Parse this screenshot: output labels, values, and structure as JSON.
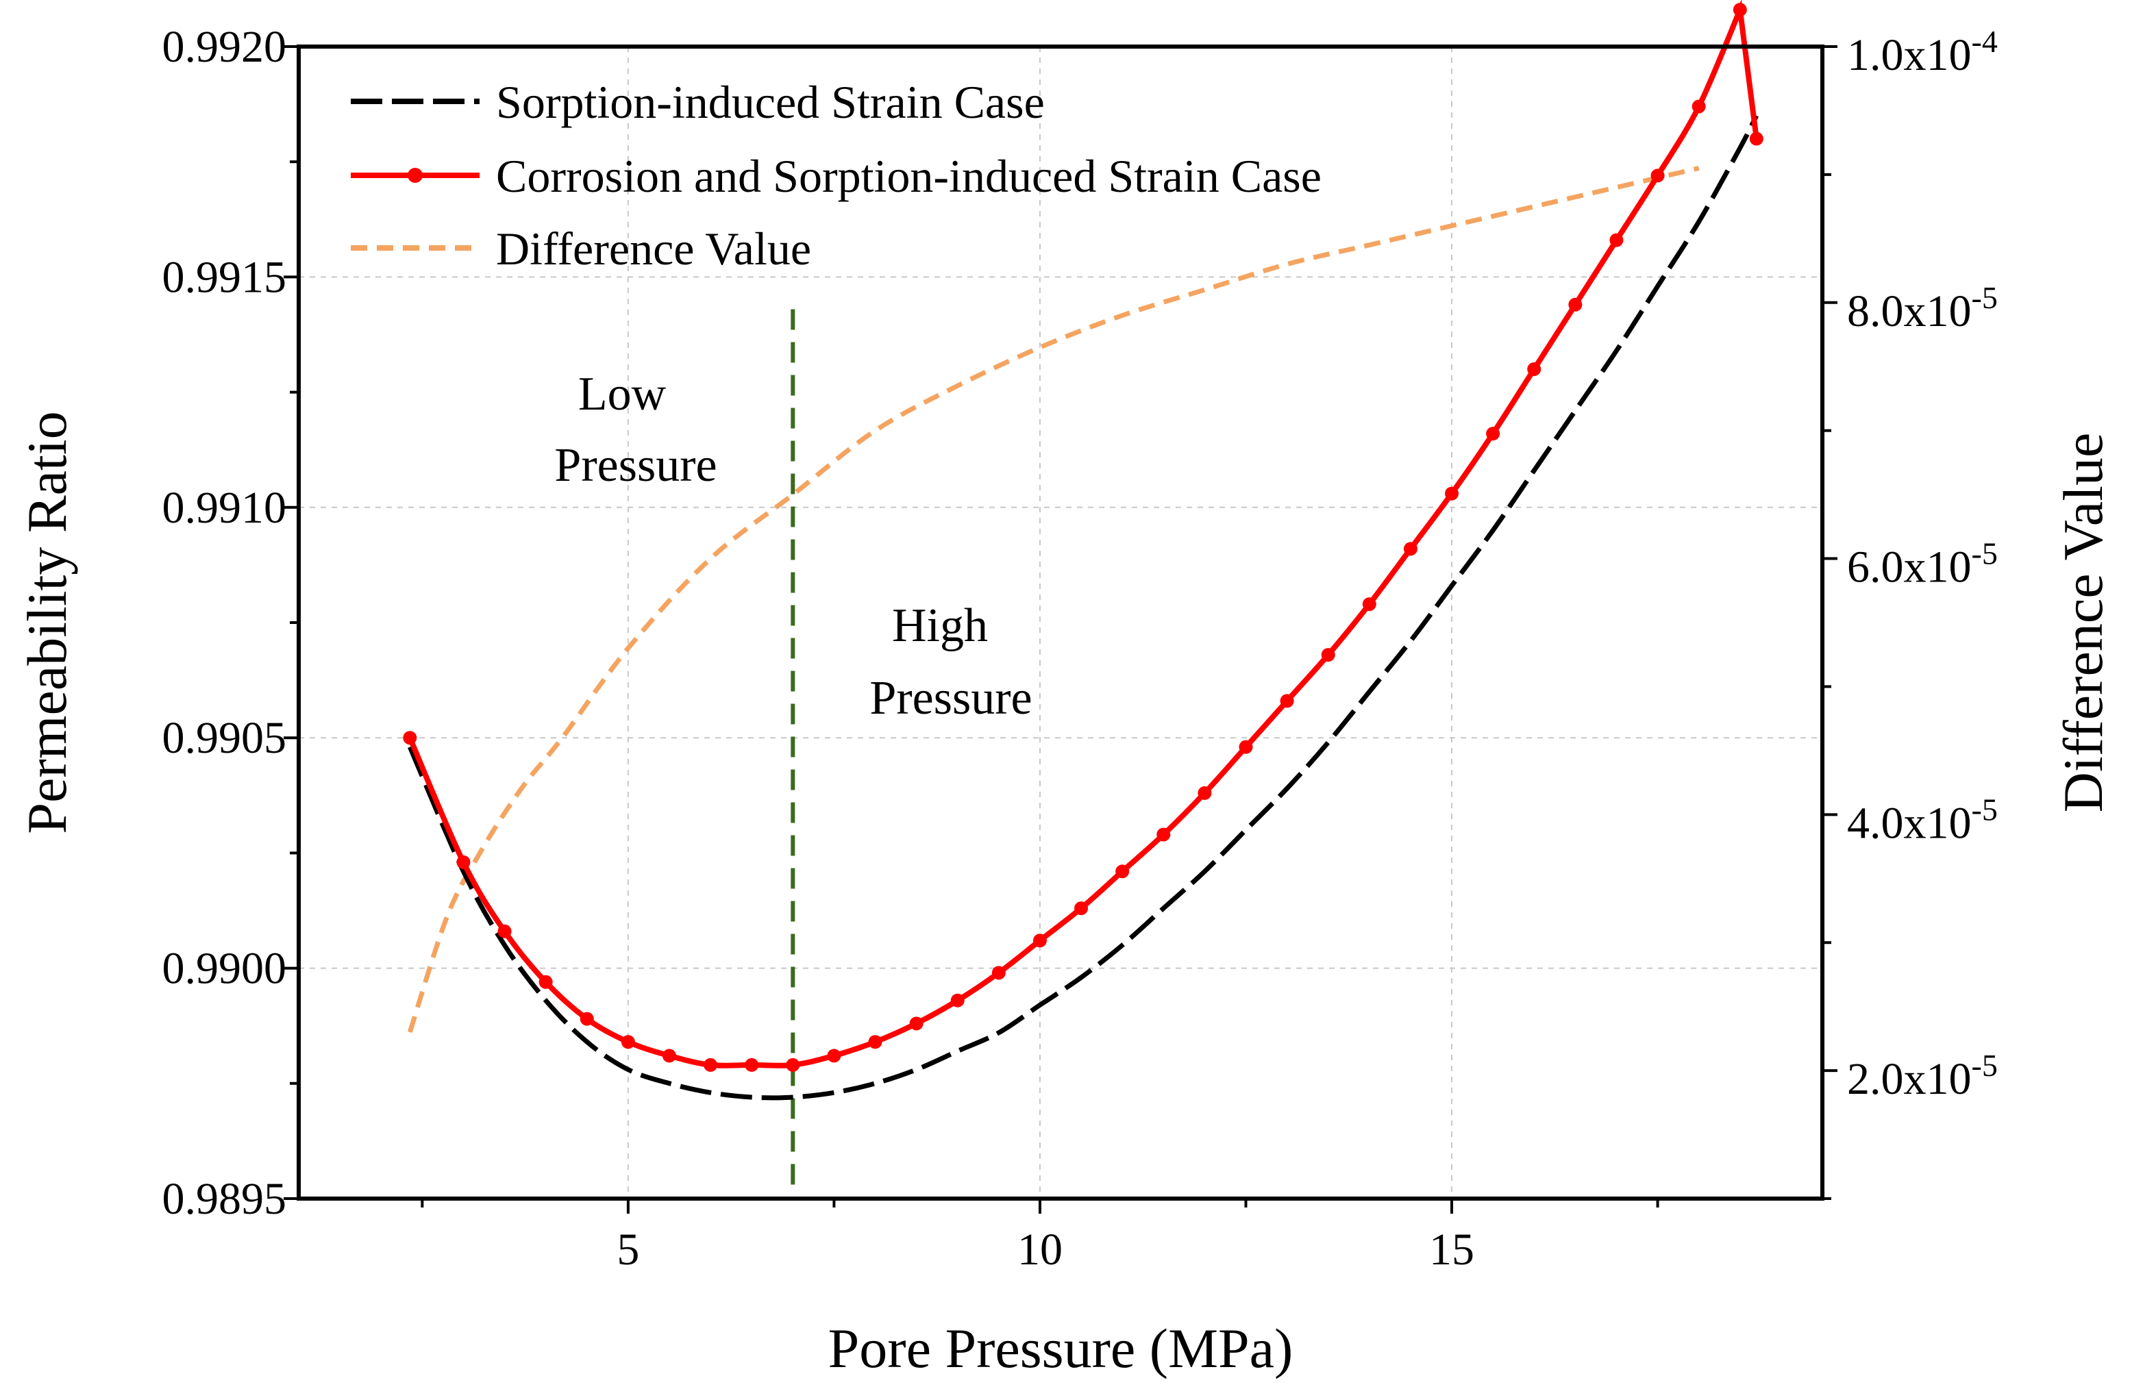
{
  "chart_data": {
    "type": "line",
    "title": "",
    "xlabel": "Pore Pressure (MPa)",
    "ylabel": "Permeability Ratio",
    "y2label": "Difference Value",
    "xlim": [
      1,
      19.5
    ],
    "ylim": [
      0.9895,
      0.992
    ],
    "y2lim": [
      1e-05,
      0.0001
    ],
    "xticks": [
      5,
      10,
      15
    ],
    "xtick_labels": [
      "5",
      "10",
      "15"
    ],
    "yticks": [
      0.9895,
      0.99,
      0.9905,
      0.991,
      0.9915,
      0.992
    ],
    "ytick_labels": [
      "0.9895",
      "0.9900",
      "0.9905",
      "0.9910",
      "0.9915",
      "0.9920"
    ],
    "y2ticks": [
      2e-05,
      4e-05,
      6e-05,
      8e-05,
      0.0001
    ],
    "y2tick_labels": [
      {
        "mantissa": "2.0x10",
        "exp": "-5"
      },
      {
        "mantissa": "4.0x10",
        "exp": "-5"
      },
      {
        "mantissa": "6.0x10",
        "exp": "-5"
      },
      {
        "mantissa": "8.0x10",
        "exp": "-5"
      },
      {
        "mantissa": "1.0x10",
        "exp": "-4"
      }
    ],
    "grid": true,
    "legend_position": "top-left",
    "series": [
      {
        "name": "Sorption-induced Strain Case",
        "axis": "left",
        "color": "#000000",
        "style": "dashed",
        "x": [
          2.35,
          3.0,
          3.5,
          4.0,
          4.5,
          5.0,
          5.5,
          6.0,
          6.5,
          7.0,
          7.5,
          8.0,
          8.5,
          9.0,
          9.5,
          10.0,
          10.5,
          11.0,
          11.5,
          12.0,
          12.5,
          13.0,
          13.5,
          14.0,
          14.5,
          15.0,
          15.5,
          16.0,
          16.5,
          17.0,
          17.5,
          18.0,
          18.5,
          18.7
        ],
        "y": [
          0.99048,
          0.99021,
          0.99005,
          0.98993,
          0.98984,
          0.98978,
          0.98975,
          0.98973,
          0.98972,
          0.98972,
          0.98973,
          0.98975,
          0.98978,
          0.98982,
          0.98986,
          0.98992,
          0.98998,
          0.99005,
          0.99013,
          0.99021,
          0.9903,
          0.99039,
          0.99049,
          0.9906,
          0.99071,
          0.99083,
          0.99095,
          0.99108,
          0.99121,
          0.99134,
          0.99148,
          0.99162,
          0.99178,
          0.99185
        ]
      },
      {
        "name": "Corrosion and Sorption-induced Strain Case",
        "axis": "left",
        "color": "#ff0000",
        "style": "solid-markers",
        "x": [
          2.35,
          3.0,
          3.5,
          4.0,
          4.5,
          5.0,
          5.5,
          6.0,
          6.5,
          7.0,
          7.5,
          8.0,
          8.5,
          9.0,
          9.5,
          10.0,
          10.5,
          11.0,
          11.5,
          12.0,
          12.5,
          13.0,
          13.5,
          14.0,
          14.5,
          15.0,
          15.5,
          16.0,
          16.5,
          17.0,
          17.5,
          18.0,
          18.5,
          18.7
        ],
        "y": [
          0.9905,
          0.99023,
          0.99008,
          0.98997,
          0.98989,
          0.98984,
          0.98981,
          0.98979,
          0.98979,
          0.98979,
          0.98981,
          0.98984,
          0.98988,
          0.98993,
          0.98999,
          0.99006,
          0.99013,
          0.99021,
          0.99029,
          0.99038,
          0.99048,
          0.99058,
          0.99068,
          0.99079,
          0.99091,
          0.99103,
          0.99116,
          0.9913,
          0.99144,
          0.99158,
          0.99172,
          0.99187,
          0.99208,
          0.9918
        ]
      },
      {
        "name": "Difference Value",
        "axis": "right",
        "color": "#f4a460",
        "style": "dashed",
        "x": [
          2.35,
          2.8,
          3.2,
          3.7,
          4.2,
          5.0,
          6.0,
          7.0,
          8.0,
          9.0,
          10.0,
          11.0,
          12.0,
          13.0,
          14.0,
          15.0,
          16.0,
          17.0,
          18.0
        ],
        "y": [
          2.3e-05,
          3.2e-05,
          3.7e-05,
          4.2e-05,
          4.6e-05,
          5.3e-05,
          6e-05,
          6.5e-05,
          7e-05,
          7.35e-05,
          7.65e-05,
          7.9e-05,
          8.1e-05,
          8.3e-05,
          8.45e-05,
          8.6e-05,
          8.75e-05,
          8.9e-05,
          9.05e-05
        ]
      }
    ],
    "divider_x": 7.0,
    "annotations": [
      {
        "lines": [
          "Low",
          "Pressure"
        ]
      },
      {
        "lines": [
          "High",
          "Pressure"
        ]
      }
    ]
  }
}
